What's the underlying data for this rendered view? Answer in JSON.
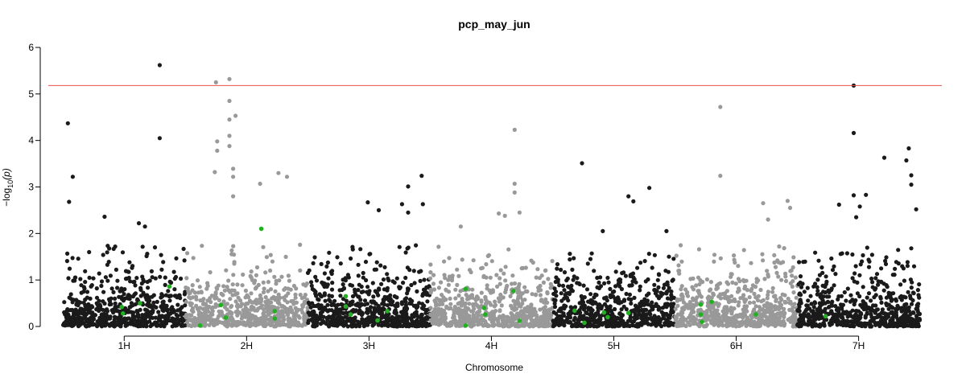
{
  "chart_data": {
    "type": "scatter",
    "title": "pcp_may_jun",
    "xlabel": "Chromosome",
    "ylabel_prefix": "−log",
    "ylabel_sub": "10",
    "ylabel_suffix": "(p)",
    "ylim": [
      0,
      6
    ],
    "y_ticks": [
      "0",
      "1",
      "2",
      "3",
      "4",
      "5",
      "6"
    ],
    "x_ticks": [
      "1H",
      "2H",
      "3H",
      "4H",
      "5H",
      "6H",
      "7H"
    ],
    "threshold": 5.18,
    "grid": false,
    "legend": "none",
    "colors": {
      "chrom_dark": "#1a1a1a",
      "chrom_light": "#999999",
      "highlight": "#22b022",
      "threshold_line": "#e8504a"
    },
    "chromosomes": [
      {
        "name": "1H",
        "start": 0,
        "end": 1.0,
        "color": "dark",
        "top_points": [
          [
            0.04,
            4.37
          ],
          [
            0.08,
            3.22
          ],
          [
            0.05,
            2.68
          ],
          [
            0.79,
            5.62
          ],
          [
            0.79,
            4.05
          ],
          [
            0.34,
            2.36
          ],
          [
            0.62,
            2.22
          ],
          [
            0.67,
            2.15
          ]
        ]
      },
      {
        "name": "2H",
        "start": 1.0,
        "end": 2.0,
        "color": "light",
        "top_points": [
          [
            0.25,
            5.25
          ],
          [
            0.36,
            5.32
          ],
          [
            0.36,
            4.85
          ],
          [
            0.41,
            4.53
          ],
          [
            0.36,
            4.45
          ],
          [
            0.26,
            3.98
          ],
          [
            0.26,
            3.78
          ],
          [
            0.36,
            3.88
          ],
          [
            0.36,
            4.1
          ],
          [
            0.24,
            3.32
          ],
          [
            0.39,
            3.39
          ],
          [
            0.39,
            3.22
          ],
          [
            0.61,
            3.07
          ],
          [
            0.76,
            3.3
          ],
          [
            0.83,
            3.22
          ],
          [
            0.39,
            2.8
          ]
        ]
      },
      {
        "name": "3H",
        "start": 2.0,
        "end": 3.0,
        "color": "dark",
        "top_points": [
          [
            0.49,
            2.67
          ],
          [
            0.58,
            2.5
          ],
          [
            0.77,
            2.63
          ],
          [
            0.82,
            3.01
          ],
          [
            0.93,
            3.24
          ],
          [
            0.82,
            2.45
          ],
          [
            0.94,
            2.63
          ]
        ]
      },
      {
        "name": "4H",
        "start": 3.0,
        "end": 4.0,
        "color": "light",
        "top_points": [
          [
            0.56,
            2.43
          ],
          [
            0.61,
            2.38
          ],
          [
            0.69,
            4.23
          ],
          [
            0.69,
            3.07
          ],
          [
            0.69,
            2.88
          ],
          [
            0.73,
            2.45
          ],
          [
            0.25,
            2.15
          ]
        ]
      },
      {
        "name": "5H",
        "start": 4.0,
        "end": 5.0,
        "color": "dark",
        "top_points": [
          [
            0.24,
            3.51
          ],
          [
            0.62,
            2.8
          ],
          [
            0.66,
            2.69
          ],
          [
            0.79,
            2.98
          ],
          [
            0.41,
            2.05
          ],
          [
            0.93,
            2.05
          ]
        ]
      },
      {
        "name": "6H",
        "start": 5.0,
        "end": 6.0,
        "color": "light",
        "top_points": [
          [
            0.37,
            4.72
          ],
          [
            0.37,
            3.24
          ],
          [
            0.72,
            2.65
          ],
          [
            0.76,
            2.3
          ],
          [
            0.92,
            2.7
          ],
          [
            0.94,
            2.55
          ]
        ]
      },
      {
        "name": "7H",
        "start": 6.0,
        "end": 7.0,
        "color": "dark",
        "top_points": [
          [
            0.46,
            5.18
          ],
          [
            0.46,
            4.16
          ],
          [
            0.46,
            2.82
          ],
          [
            0.51,
            2.58
          ],
          [
            0.48,
            2.35
          ],
          [
            0.56,
            2.83
          ],
          [
            0.71,
            3.63
          ],
          [
            0.91,
            3.83
          ],
          [
            0.89,
            3.57
          ],
          [
            0.93,
            3.25
          ],
          [
            0.93,
            3.05
          ],
          [
            0.97,
            2.52
          ],
          [
            0.34,
            2.62
          ]
        ]
      }
    ],
    "highlight_points": [
      [
        0.48,
        0.42
      ],
      [
        0.49,
        0.28
      ],
      [
        0.63,
        0.5
      ],
      [
        0.87,
        0.86
      ],
      [
        1.12,
        0.02
      ],
      [
        1.29,
        0.46
      ],
      [
        1.33,
        0.19
      ],
      [
        1.62,
        2.1
      ],
      [
        1.73,
        0.33
      ],
      [
        1.73,
        0.17
      ],
      [
        2.31,
        0.65
      ],
      [
        2.31,
        0.43
      ],
      [
        2.35,
        0.26
      ],
      [
        2.57,
        0.13
      ],
      [
        2.65,
        0.33
      ],
      [
        3.29,
        0.81
      ],
      [
        3.29,
        0.02
      ],
      [
        3.44,
        0.4
      ],
      [
        3.45,
        0.26
      ],
      [
        3.68,
        0.76
      ],
      [
        3.73,
        0.12
      ],
      [
        4.18,
        0.34
      ],
      [
        4.26,
        0.08
      ],
      [
        4.42,
        0.3
      ],
      [
        4.45,
        0.2
      ],
      [
        4.62,
        0.29
      ],
      [
        5.21,
        0.47
      ],
      [
        5.21,
        0.26
      ],
      [
        5.22,
        0.1
      ],
      [
        5.3,
        0.53
      ],
      [
        5.66,
        0.26
      ],
      [
        6.23,
        0.22
      ]
    ]
  }
}
